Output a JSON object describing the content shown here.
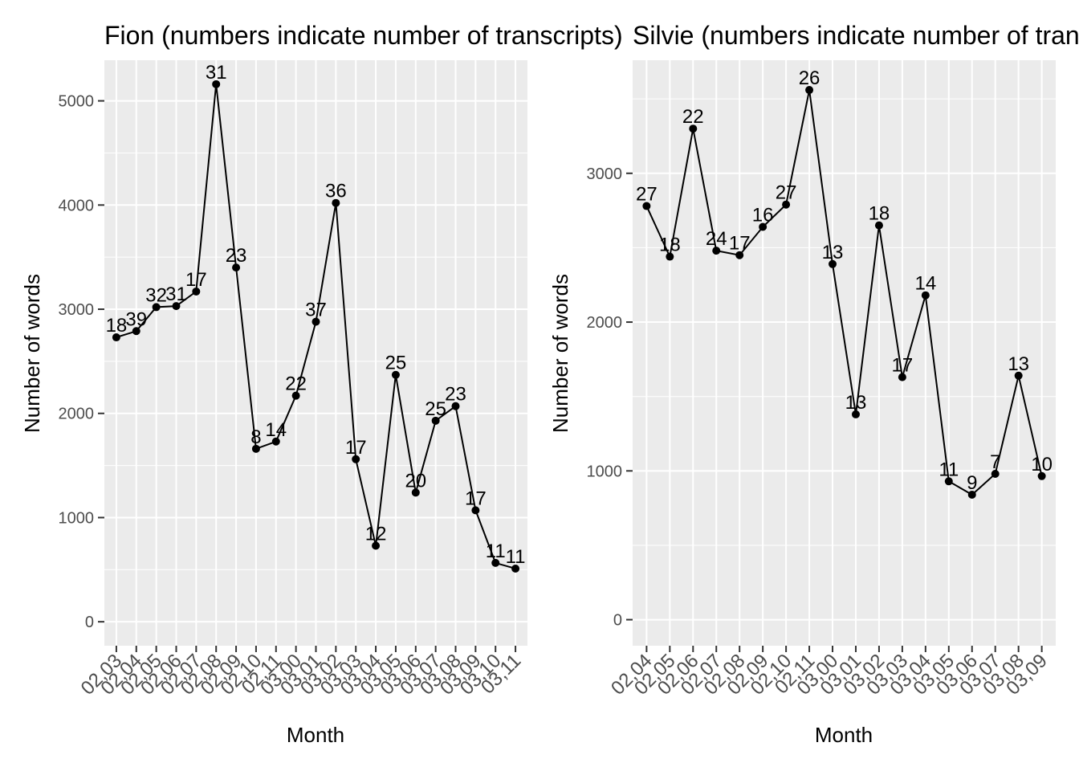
{
  "chart_data": [
    {
      "type": "line",
      "title": "Fion (numbers indicate number of transcripts)",
      "xlabel": "Month",
      "ylabel": "Number of words",
      "ylim": [
        -230,
        5390
      ],
      "yticks": [
        0,
        1000,
        2000,
        3000,
        4000,
        5000
      ],
      "grid": true,
      "categories": [
        "02,03",
        "02,04",
        "02,05",
        "02,06",
        "02,07",
        "02,08",
        "02,09",
        "02,10",
        "02,11",
        "03,00",
        "03,01",
        "03,02",
        "03,03",
        "03,04",
        "03,05",
        "03,06",
        "03,07",
        "03,08",
        "03,09",
        "03,10",
        "03,11"
      ],
      "values": [
        2730,
        2790,
        3020,
        3030,
        3170,
        5160,
        3400,
        1660,
        1730,
        2170,
        2880,
        4020,
        1560,
        730,
        2370,
        1240,
        1930,
        2070,
        1070,
        565,
        510
      ],
      "labels": [
        "18",
        "39",
        "32",
        "31",
        "17",
        "31",
        "23",
        "8",
        "14",
        "22",
        "37",
        "36",
        "17",
        "12",
        "25",
        "20",
        "25",
        "23",
        "17",
        "11",
        "11"
      ]
    },
    {
      "type": "line",
      "title": "Silvie (numbers indicate number of transcripts)",
      "xlabel": "Month",
      "ylabel": "Number of words",
      "ylim": [
        -175,
        3760
      ],
      "yticks": [
        0,
        1000,
        2000,
        3000
      ],
      "grid": true,
      "categories": [
        "02,04",
        "02,05",
        "02,06",
        "02,07",
        "02,08",
        "02,09",
        "02,10",
        "02,11",
        "03,00",
        "03,01",
        "03,02",
        "03,03",
        "03,04",
        "03,05",
        "03,06",
        "03,07",
        "03,08",
        "03,09"
      ],
      "values": [
        2780,
        2440,
        3300,
        2480,
        2450,
        2640,
        2790,
        3560,
        2390,
        1380,
        2650,
        1630,
        2180,
        930,
        840,
        980,
        1640,
        965
      ],
      "labels": [
        "27",
        "18",
        "22",
        "24",
        "17",
        "16",
        "27",
        "26",
        "13",
        "13",
        "18",
        "17",
        "14",
        "11",
        "9",
        "7",
        "13",
        "10"
      ]
    }
  ]
}
